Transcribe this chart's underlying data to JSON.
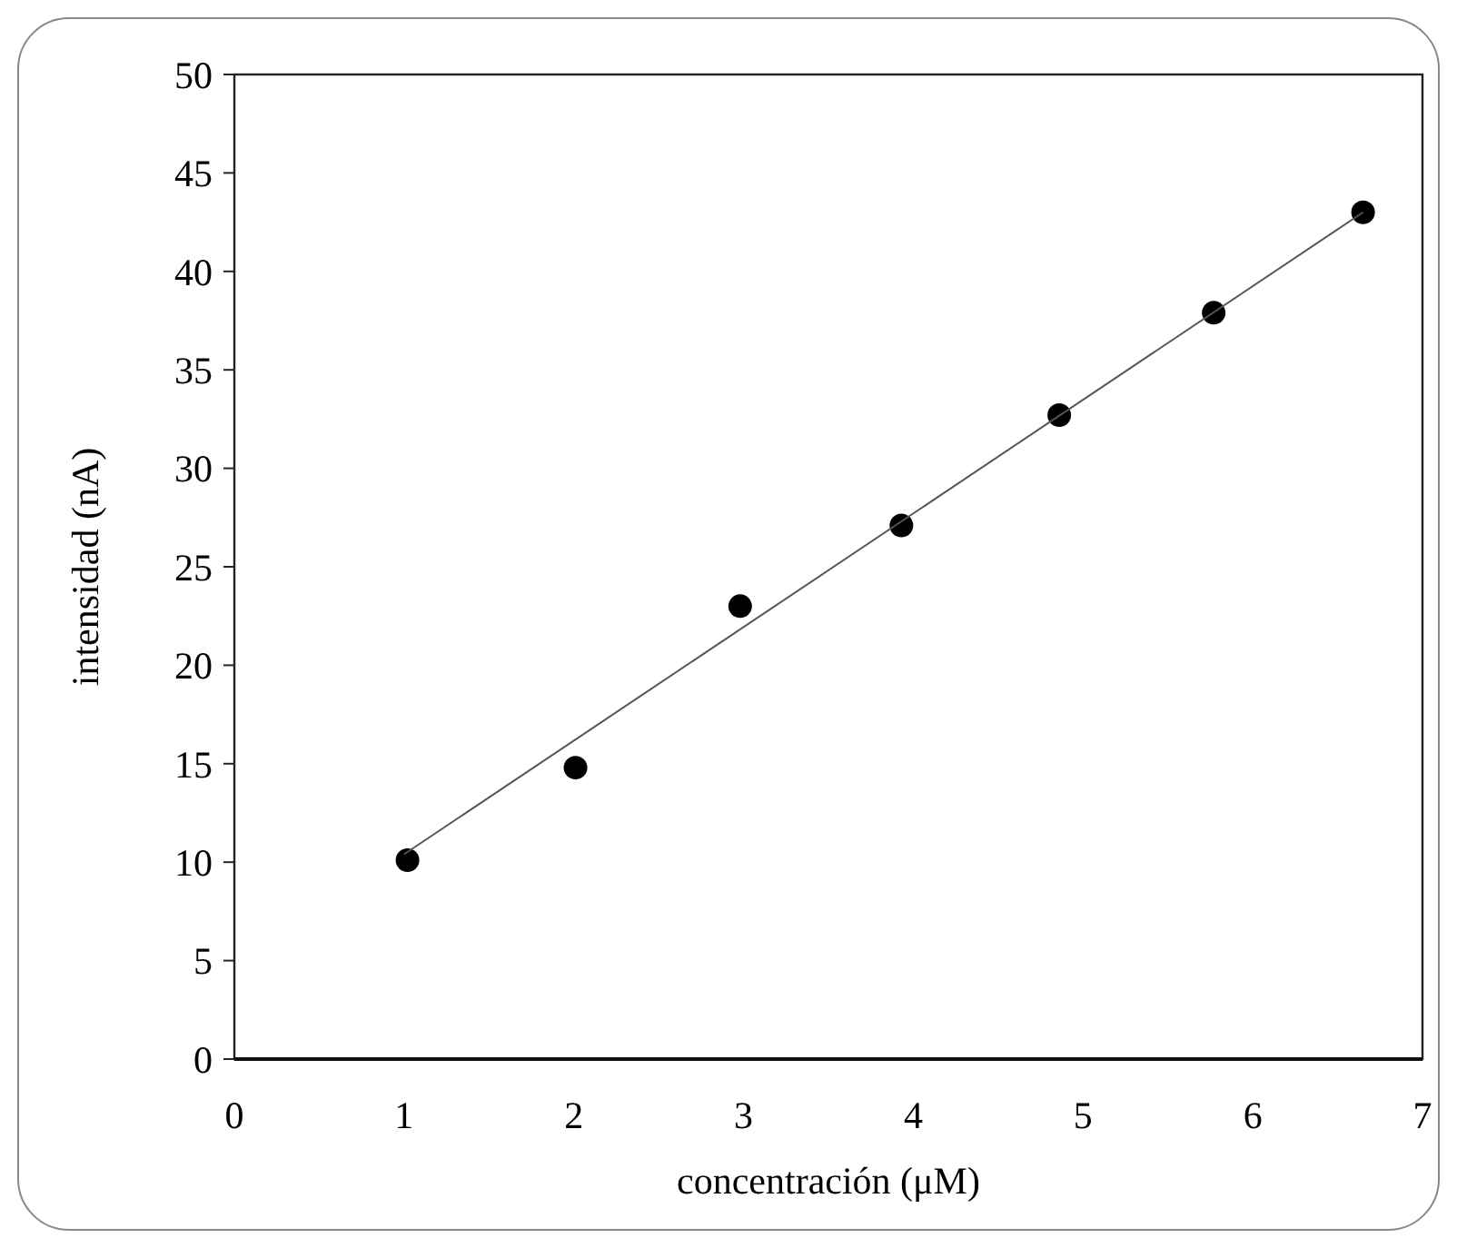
{
  "chart_data": {
    "type": "scatter",
    "xlabel": "concentración (μM)",
    "ylabel": "intensidad (nA)",
    "xlim": [
      0,
      7
    ],
    "xticks": [
      0,
      1,
      2,
      3,
      4,
      5,
      6,
      7
    ],
    "ylim": [
      0,
      50
    ],
    "yticks": [
      0,
      5,
      10,
      15,
      20,
      25,
      30,
      35,
      40,
      45,
      50
    ],
    "grid": false,
    "marker": "circle",
    "series": [
      {
        "color": "#000000",
        "x": [
          1.02,
          2.01,
          2.98,
          3.93,
          4.86,
          5.77,
          6.65
        ],
        "values": [
          10.1,
          14.8,
          23.0,
          27.1,
          32.7,
          37.9,
          43.0
        ]
      },
      {
        "type": "line",
        "color": "#555555",
        "x": [
          1,
          6.65
        ],
        "values": [
          10.4,
          43.0
        ],
        "marker": "none",
        "line_style": "solid"
      }
    ]
  }
}
